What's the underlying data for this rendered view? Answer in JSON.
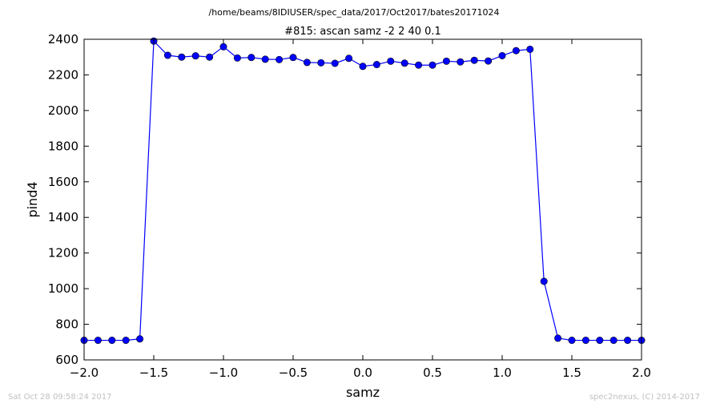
{
  "suptitle": "/home/beams/8IDIUSER/spec_data/2017/Oct2017/bates20171024",
  "footer_left": "Sat Oct 28 09:58:24 2017",
  "footer_right": "spec2nexus, (C) 2014-2017",
  "chart_data": {
    "type": "line",
    "title": "#815: ascan  samz -2 2  40 0.1",
    "xlabel": "samz",
    "ylabel": "pind4",
    "xlim": [
      -2.0,
      2.0
    ],
    "ylim": [
      600,
      2400
    ],
    "xticks": [
      -2.0,
      -1.5,
      -1.0,
      -0.5,
      0.0,
      0.5,
      1.0,
      1.5,
      2.0
    ],
    "xtick_labels": [
      "−2.0",
      "−1.5",
      "−1.0",
      "−0.5",
      "0.0",
      "0.5",
      "1.0",
      "1.5",
      "2.0"
    ],
    "yticks": [
      600,
      800,
      1000,
      1200,
      1400,
      1600,
      1800,
      2000,
      2200,
      2400
    ],
    "ytick_labels": [
      "600",
      "800",
      "1000",
      "1200",
      "1400",
      "1600",
      "1800",
      "2000",
      "2200",
      "2400"
    ],
    "grid": false,
    "line_color": "#0000ff",
    "marker_color": "#0000ff",
    "series": [
      {
        "x": [
          -2.0,
          -1.9,
          -1.8,
          -1.7,
          -1.6,
          -1.5,
          -1.4,
          -1.3,
          -1.2,
          -1.1,
          -1.0,
          -0.9,
          -0.8,
          -0.7,
          -0.6,
          -0.5,
          -0.4,
          -0.3,
          -0.2,
          -0.1,
          0.0,
          0.1,
          0.2,
          0.3,
          0.4,
          0.5,
          0.6,
          0.7,
          0.8,
          0.9,
          1.0,
          1.1,
          1.2,
          1.3,
          1.4,
          1.5,
          1.6,
          1.7,
          1.8,
          1.9,
          2.0
        ],
        "y": [
          710,
          710,
          710,
          710,
          718,
          2390,
          2310,
          2300,
          2307,
          2300,
          2358,
          2295,
          2298,
          2288,
          2286,
          2298,
          2270,
          2268,
          2265,
          2293,
          2248,
          2258,
          2277,
          2266,
          2255,
          2255,
          2277,
          2273,
          2282,
          2278,
          2308,
          2336,
          2344,
          1041,
          722,
          710,
          710,
          710,
          710,
          710,
          710
        ]
      }
    ]
  }
}
